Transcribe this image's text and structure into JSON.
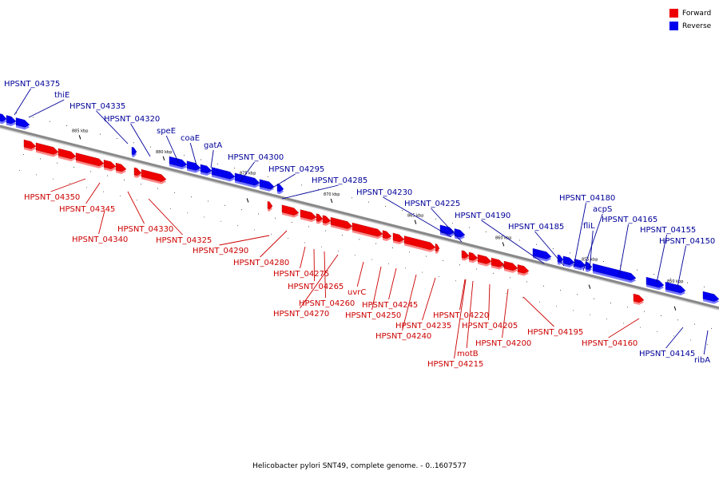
{
  "title": "Helicobacter pylori SNT49, complete genome. - 0..1607577",
  "legend": [
    {
      "label": "Forward",
      "color": "#ee0000"
    },
    {
      "label": "Reverse",
      "color": "#0000ee"
    }
  ],
  "colors": {
    "forward": "#ee0000",
    "reverse": "#0000ee",
    "forward_label": "#cc0000",
    "reverse_label": "#000099",
    "backbone": "#888888"
  },
  "scale_ticks": [
    "885 kbp",
    "880 kbp",
    "875 kbp",
    "870 kbp",
    "865 kbp",
    "860 kbp",
    "855 kbp",
    "850 kbp"
  ],
  "reverse_labels": [
    "HPSNT_04375",
    "thiE",
    "HPSNT_04335",
    "HPSNT_04320",
    "speE",
    "coaE",
    "gatA",
    "HPSNT_04300",
    "HPSNT_04295",
    "HPSNT_04285",
    "HPSNT_04230",
    "HPSNT_04225",
    "HPSNT_04190",
    "HPSNT_04185",
    "HPSNT_04180",
    "acpS",
    "fliL",
    "HPSNT_04165",
    "HPSNT_04155",
    "HPSNT_04150",
    "HPSNT_04145",
    "ribA"
  ],
  "forward_labels": [
    "HPSNT_04350",
    "HPSNT_04345",
    "HPSNT_04340",
    "HPSNT_04330",
    "HPSNT_04325",
    "HPSNT_04290",
    "HPSNT_04280",
    "HPSNT_04275",
    "HPSNT_04265",
    "HPSNT_04260",
    "HPSNT_04270",
    "uvrC",
    "HPSNT_04245",
    "HPSNT_04250",
    "HPSNT_04235",
    "HPSNT_04240",
    "HPSNT_04220",
    "HPSNT_04205",
    "HPSNT_04200",
    "motB",
    "HPSNT_04215",
    "HPSNT_04195",
    "HPSNT_04160"
  ]
}
